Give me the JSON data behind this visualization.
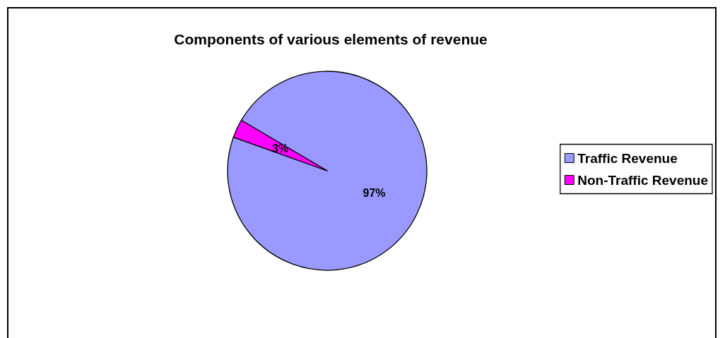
{
  "chart_data": {
    "type": "pie",
    "title": "Components of various elements of revenue",
    "categories": [
      "Traffic Revenue",
      "Non-Traffic Revenue"
    ],
    "values": [
      97,
      3
    ],
    "value_labels": [
      "97%",
      "3%"
    ],
    "colors": [
      "#9999ff",
      "#ff00ff"
    ],
    "legend": "right"
  }
}
